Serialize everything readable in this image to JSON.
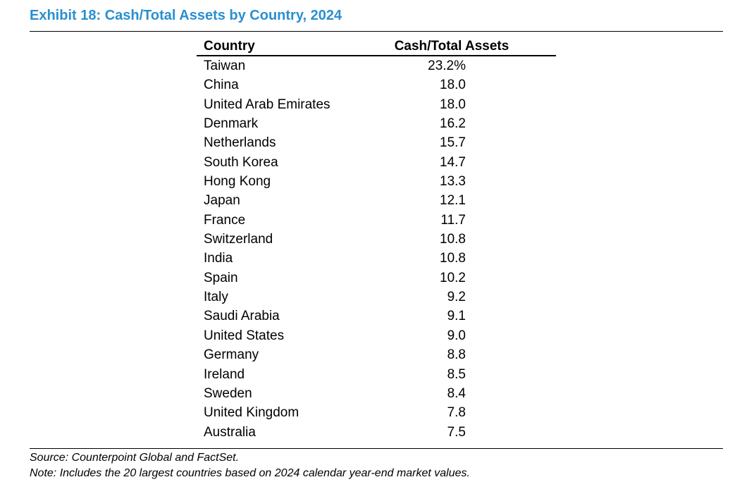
{
  "title": "Exhibit 18: Cash/Total Assets by Country, 2024",
  "colors": {
    "title": "#2a8fcf",
    "text": "#000000",
    "rule": "#000000"
  },
  "table": {
    "headers": {
      "country": "Country",
      "value": "Cash/Total Assets"
    },
    "rows": [
      {
        "country": "Taiwan",
        "value": "23.2%"
      },
      {
        "country": "China",
        "value": "18.0"
      },
      {
        "country": "United Arab Emirates",
        "value": "18.0"
      },
      {
        "country": "Denmark",
        "value": "16.2"
      },
      {
        "country": "Netherlands",
        "value": "15.7"
      },
      {
        "country": "South Korea",
        "value": "14.7"
      },
      {
        "country": "Hong Kong",
        "value": "13.3"
      },
      {
        "country": "Japan",
        "value": "12.1"
      },
      {
        "country": "France",
        "value": "11.7"
      },
      {
        "country": "Switzerland",
        "value": "10.8"
      },
      {
        "country": "India",
        "value": "10.8"
      },
      {
        "country": "Spain",
        "value": "10.2"
      },
      {
        "country": "Italy",
        "value": "9.2"
      },
      {
        "country": "Saudi Arabia",
        "value": "9.1"
      },
      {
        "country": "United States",
        "value": "9.0"
      },
      {
        "country": "Germany",
        "value": "8.8"
      },
      {
        "country": "Ireland",
        "value": "8.5"
      },
      {
        "country": "Sweden",
        "value": "8.4"
      },
      {
        "country": "United Kingdom",
        "value": "7.8"
      },
      {
        "country": "Australia",
        "value": "7.5"
      }
    ]
  },
  "footnotes": {
    "source": "Source: Counterpoint Global and FactSet.",
    "note": "Note: Includes the 20 largest countries based on 2024 calendar year-end market values."
  }
}
